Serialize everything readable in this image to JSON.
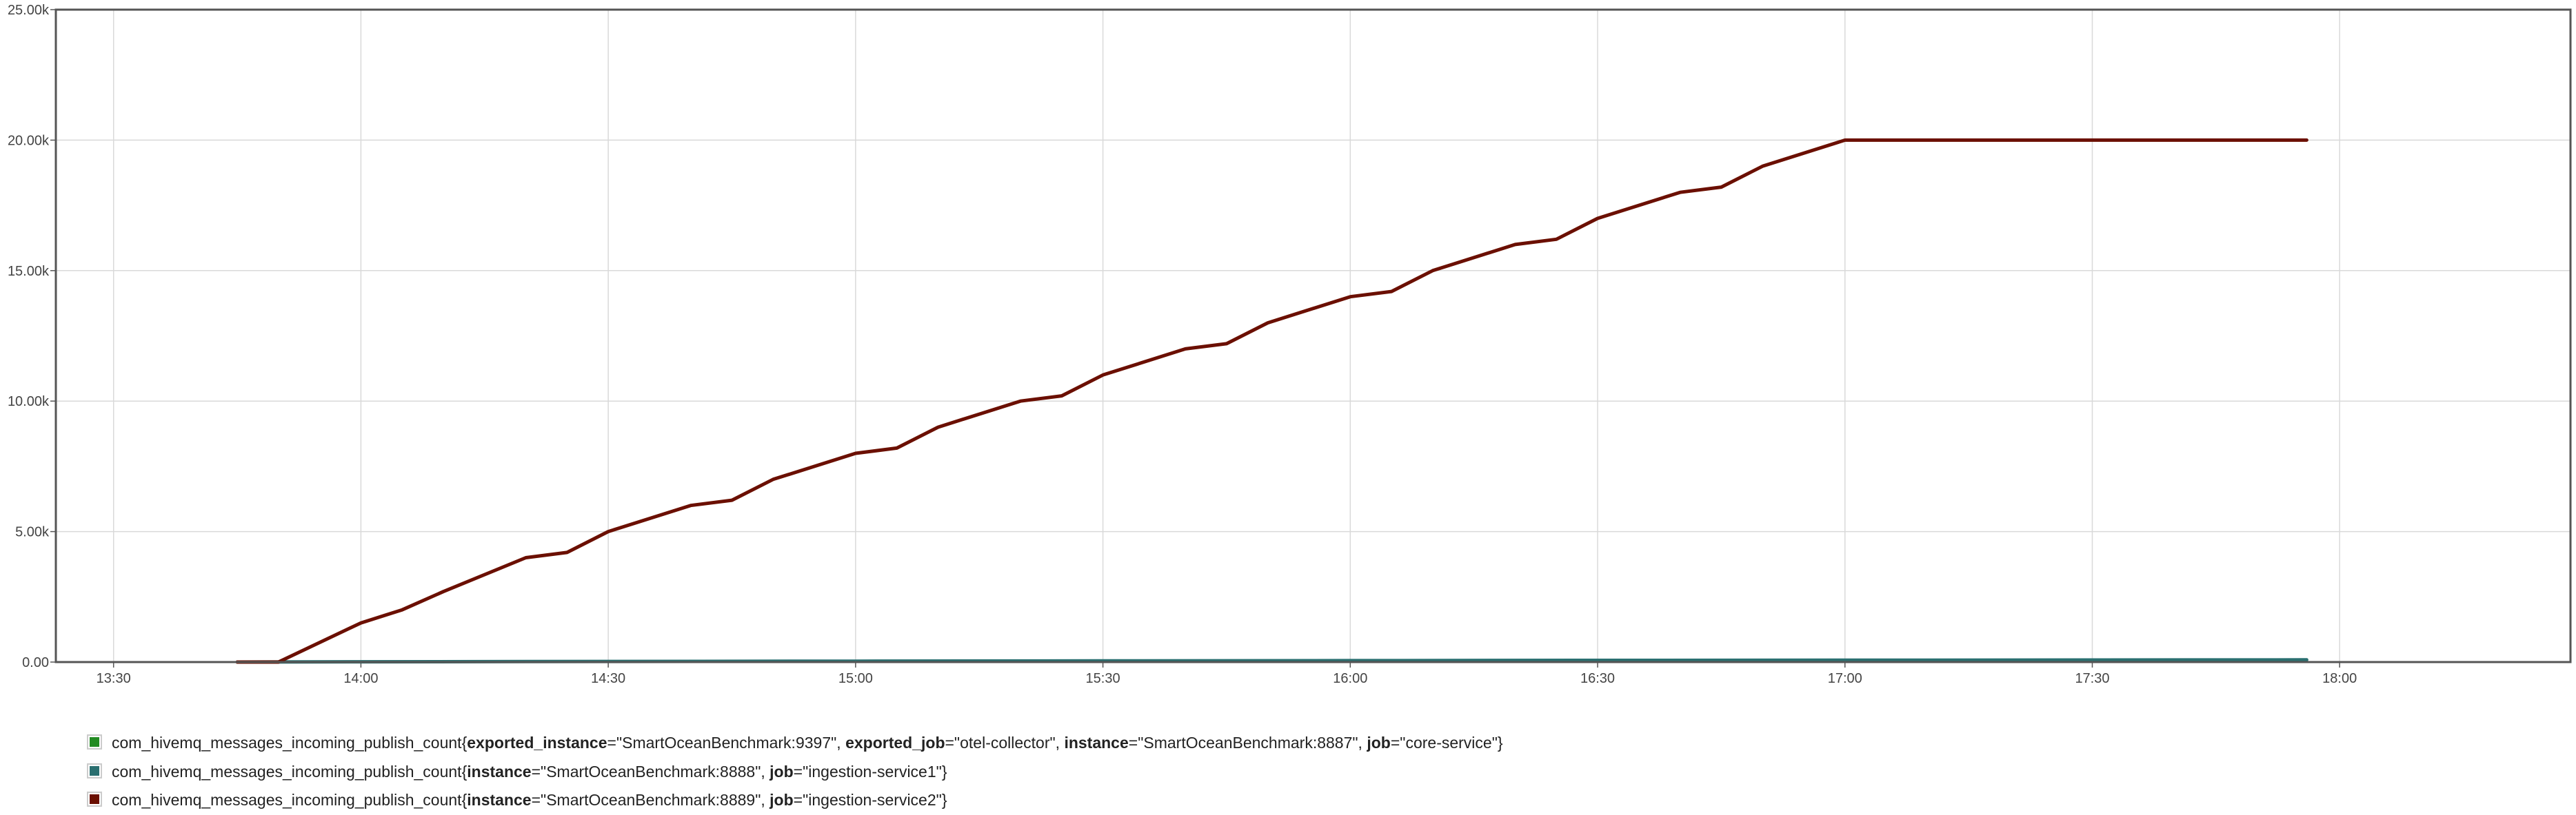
{
  "chart_data": {
    "type": "line",
    "y_ticks": [
      "0.00",
      "5.00k",
      "10.00k",
      "15.00k",
      "20.00k",
      "25.00k"
    ],
    "x_ticks": [
      "13:30",
      "14:00",
      "14:30",
      "15:00",
      "15:30",
      "16:00",
      "16:30",
      "17:00",
      "17:30",
      "18:00"
    ],
    "ylim": [
      0,
      25000
    ],
    "xlim": [
      "13:23",
      "18:28"
    ],
    "grid": true,
    "legend_position": "bottom",
    "series": [
      {
        "metric": "com_hivemq_messages_incoming_publish_count",
        "labels": [
          {
            "key": "exported_instance",
            "value": "SmartOceanBenchmark:9397"
          },
          {
            "key": "exported_job",
            "value": "otel-collector"
          },
          {
            "key": "instance",
            "value": "SmartOceanBenchmark:8887"
          },
          {
            "key": "job",
            "value": "core-service"
          }
        ],
        "color": "#228B22",
        "x": [],
        "values": []
      },
      {
        "metric": "com_hivemq_messages_incoming_publish_count",
        "labels": [
          {
            "key": "instance",
            "value": "SmartOceanBenchmark:8888"
          },
          {
            "key": "job",
            "value": "ingestion-service1"
          }
        ],
        "color": "#2A6F70",
        "x": [
          "13:45",
          "14:00",
          "14:30",
          "15:00",
          "15:30",
          "16:00",
          "16:30",
          "17:00",
          "17:30",
          "17:56"
        ],
        "values": [
          0,
          10,
          25,
          35,
          45,
          55,
          65,
          70,
          80,
          85
        ]
      },
      {
        "metric": "com_hivemq_messages_incoming_publish_count",
        "labels": [
          {
            "key": "instance",
            "value": "SmartOceanBenchmark:8889"
          },
          {
            "key": "job",
            "value": "ingestion-service2"
          }
        ],
        "color": "#6B0F00",
        "x": [
          "13:45",
          "13:50",
          "14:00",
          "14:05",
          "14:10",
          "14:20",
          "14:25",
          "14:30",
          "14:40",
          "14:45",
          "14:50",
          "15:00",
          "15:05",
          "15:10",
          "15:20",
          "15:25",
          "15:30",
          "15:40",
          "15:45",
          "15:50",
          "16:00",
          "16:05",
          "16:10",
          "16:20",
          "16:25",
          "16:30",
          "16:40",
          "16:45",
          "16:50",
          "17:00",
          "17:05",
          "17:10",
          "17:20",
          "17:22",
          "17:30",
          "17:40",
          "17:56"
        ],
        "values": [
          0,
          0,
          1500,
          2000,
          2700,
          4000,
          4200,
          5000,
          6000,
          6200,
          7000,
          8000,
          8200,
          9000,
          10000,
          10200,
          11000,
          12000,
          12200,
          13000,
          14000,
          14200,
          15000,
          16000,
          16200,
          17000,
          18000,
          18200,
          19000,
          20000,
          20000,
          20000,
          20000,
          20000,
          20000,
          20000,
          20000
        ]
      }
    ]
  }
}
